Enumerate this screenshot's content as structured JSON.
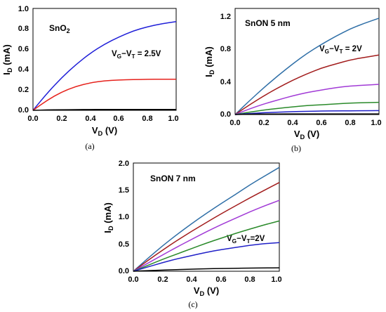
{
  "chart_data": [
    {
      "type": "line",
      "title": "SnO2",
      "xlabel": "V_D (V)",
      "ylabel": "I_D (mA)",
      "xlim": [
        0.0,
        1.0
      ],
      "ylim": [
        0.0,
        1.0
      ],
      "xticks": [
        "0.0",
        "0.2",
        "0.4",
        "0.6",
        "0.8",
        "1.0"
      ],
      "yticks": [
        "0.0",
        "0.2",
        "0.4",
        "0.6",
        "0.8",
        "1.0"
      ],
      "annotation": "V_G−V_T = 2.5V",
      "caption": "(a)",
      "x": [
        0.0,
        0.1,
        0.2,
        0.3,
        0.4,
        0.5,
        0.6,
        0.7,
        0.8,
        0.9,
        1.0
      ],
      "series": [
        {
          "color": "#1f1fd8",
          "values": [
            0.0,
            0.17,
            0.32,
            0.45,
            0.56,
            0.65,
            0.72,
            0.78,
            0.82,
            0.85,
            0.87
          ]
        },
        {
          "color": "#e6221c",
          "values": [
            0.0,
            0.1,
            0.18,
            0.235,
            0.27,
            0.29,
            0.298,
            0.302,
            0.304,
            0.305,
            0.305
          ]
        },
        {
          "color": "#000000",
          "values": [
            0.0,
            0.004,
            0.006,
            0.007,
            0.008,
            0.008,
            0.008,
            0.008,
            0.008,
            0.008,
            0.008
          ]
        }
      ]
    },
    {
      "type": "line",
      "title": "SnON 5 nm",
      "xlabel": "V_D (V)",
      "ylabel": "I_D (mA)",
      "xlim": [
        0.0,
        1.0
      ],
      "ylim": [
        0.0,
        1.3
      ],
      "xticks": [
        "0.0",
        "0.2",
        "0.4",
        "0.6",
        "0.8",
        "1.0"
      ],
      "yticks": [
        "0.0",
        "0.4",
        "0.8",
        "1.2"
      ],
      "ytick_values": [
        0.0,
        0.4,
        0.8,
        1.2
      ],
      "annotation": "V_G−V_T = 2V",
      "caption": "(b)",
      "x": [
        0.0,
        0.1,
        0.2,
        0.3,
        0.4,
        0.5,
        0.6,
        0.7,
        0.8,
        0.9,
        1.0
      ],
      "series": [
        {
          "color": "#2f6fa7",
          "values": [
            0.0,
            0.17,
            0.33,
            0.48,
            0.62,
            0.75,
            0.86,
            0.96,
            1.05,
            1.12,
            1.18
          ]
        },
        {
          "color": "#a21c1c",
          "values": [
            0.0,
            0.12,
            0.23,
            0.33,
            0.42,
            0.5,
            0.57,
            0.62,
            0.67,
            0.7,
            0.73
          ]
        },
        {
          "color": "#a13ad6",
          "values": [
            0.0,
            0.07,
            0.13,
            0.18,
            0.23,
            0.27,
            0.3,
            0.33,
            0.35,
            0.36,
            0.37
          ]
        },
        {
          "color": "#2a8a2a",
          "values": [
            0.0,
            0.03,
            0.055,
            0.075,
            0.095,
            0.11,
            0.12,
            0.13,
            0.14,
            0.145,
            0.15
          ]
        },
        {
          "color": "#2020c8",
          "values": [
            0.0,
            0.012,
            0.022,
            0.03,
            0.036,
            0.04,
            0.043,
            0.045,
            0.046,
            0.047,
            0.048
          ]
        },
        {
          "color": "#000000",
          "values": [
            0.0,
            0.004,
            0.006,
            0.007,
            0.008,
            0.008,
            0.008,
            0.008,
            0.008,
            0.008,
            0.008
          ]
        }
      ]
    },
    {
      "type": "line",
      "title": "SnON 7 nm",
      "xlabel": "V_D (V)",
      "ylabel": "I_D (mA)",
      "xlim": [
        0.0,
        1.0
      ],
      "ylim": [
        0.0,
        2.0
      ],
      "xticks": [
        "0.0",
        "0.2",
        "0.4",
        "0.6",
        "0.8",
        "1.0"
      ],
      "yticks": [
        "0.0",
        "0.5",
        "1.0",
        "1.5",
        "2.0"
      ],
      "annotation": "V_G−V_T=2V",
      "caption": "(c)",
      "x": [
        0.0,
        0.1,
        0.2,
        0.3,
        0.4,
        0.5,
        0.6,
        0.7,
        0.8,
        0.9,
        1.0
      ],
      "series": [
        {
          "color": "#2f6fa7",
          "values": [
            0.0,
            0.24,
            0.47,
            0.68,
            0.88,
            1.07,
            1.25,
            1.42,
            1.6,
            1.76,
            1.92
          ]
        },
        {
          "color": "#a21c1c",
          "values": [
            0.0,
            0.2,
            0.39,
            0.57,
            0.74,
            0.9,
            1.06,
            1.21,
            1.36,
            1.5,
            1.64
          ]
        },
        {
          "color": "#a13ad6",
          "values": [
            0.0,
            0.15,
            0.3,
            0.45,
            0.59,
            0.73,
            0.86,
            0.98,
            1.1,
            1.21,
            1.31
          ]
        },
        {
          "color": "#2a8a2a",
          "values": [
            0.0,
            0.11,
            0.22,
            0.32,
            0.42,
            0.52,
            0.61,
            0.7,
            0.78,
            0.86,
            0.93
          ]
        },
        {
          "color": "#2020c8",
          "values": [
            0.0,
            0.08,
            0.16,
            0.23,
            0.29,
            0.35,
            0.4,
            0.44,
            0.48,
            0.51,
            0.53
          ]
        },
        {
          "color": "#000000",
          "values": [
            0.0,
            0.012,
            0.022,
            0.03,
            0.038,
            0.045,
            0.05,
            0.055,
            0.058,
            0.061,
            0.063
          ]
        }
      ]
    }
  ]
}
